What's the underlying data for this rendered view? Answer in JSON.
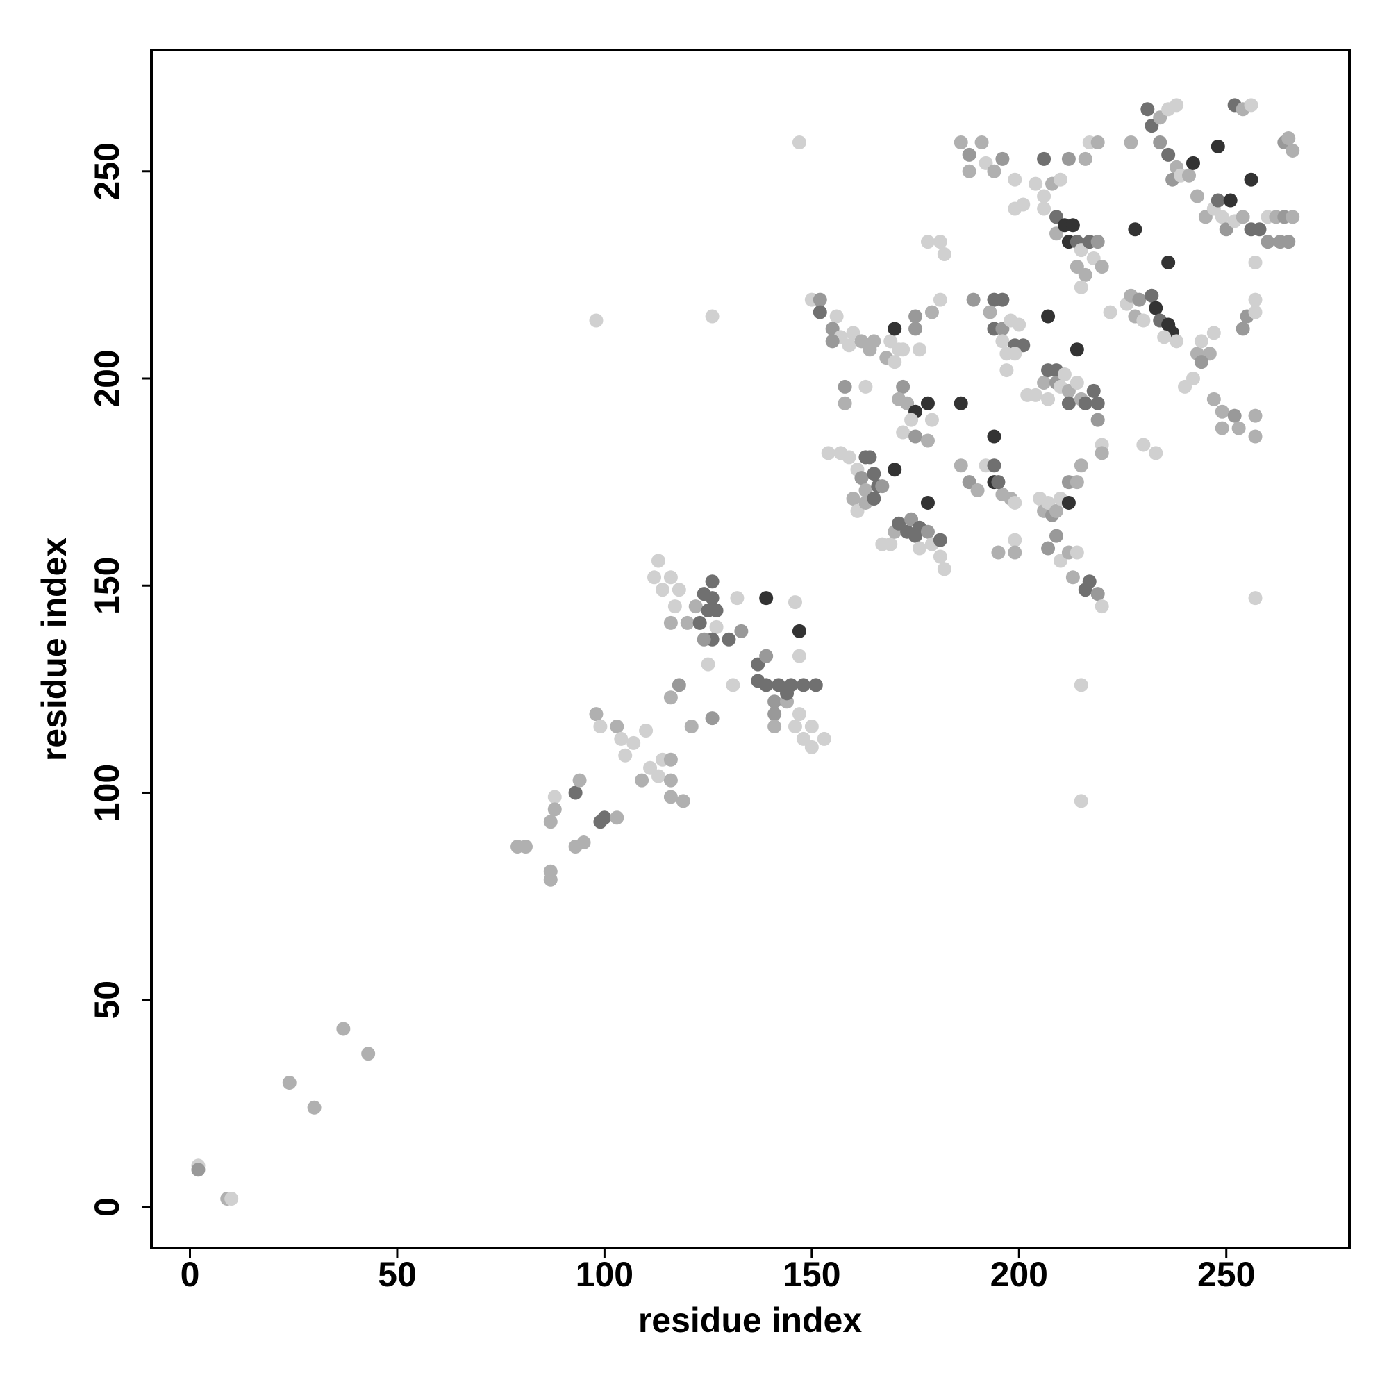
{
  "chart_data": {
    "type": "scatter",
    "xlabel": "residue index",
    "ylabel": "residue index",
    "xlim": [
      -9.3,
      279.7
    ],
    "ylim": [
      -9.9,
      279.3
    ],
    "xticks": [
      0,
      50,
      100,
      150,
      200,
      250
    ],
    "yticks": [
      0,
      50,
      100,
      150,
      200,
      250
    ],
    "series": [
      {
        "x": [
          2,
          2,
          9,
          10,
          24,
          30,
          37,
          43,
          98,
          126,
          147,
          215,
          215,
          257,
          79,
          81,
          87,
          87,
          88,
          88,
          87,
          93,
          93,
          94,
          95,
          99,
          100,
          98,
          99,
          103,
          103,
          104,
          105,
          107,
          110,
          109,
          111,
          113,
          114,
          116,
          116,
          116,
          119,
          112,
          114,
          113,
          116,
          118,
          117,
          116,
          120,
          122,
          124,
          125,
          126,
          126,
          127,
          127,
          126,
          123,
          124,
          130,
          133,
          132,
          131,
          126,
          121,
          118,
          116,
          125,
          137,
          137,
          139,
          139,
          139,
          142,
          141,
          141,
          141,
          144,
          146,
          147,
          148,
          150,
          150,
          153,
          148,
          145,
          147,
          147,
          151,
          146,
          144,
          150,
          152,
          152,
          156,
          155,
          157,
          155,
          160,
          159,
          162,
          164,
          165,
          158,
          158,
          163,
          154,
          157,
          159,
          161,
          163,
          164,
          162,
          163,
          165,
          166,
          167,
          160,
          161,
          163,
          165,
          167,
          169,
          170,
          171,
          173,
          174,
          175,
          176,
          178,
          179,
          181,
          181,
          182,
          176,
          169,
          170,
          171,
          168,
          172,
          170,
          175,
          175,
          176,
          179,
          172,
          171,
          173,
          175,
          172,
          174,
          175,
          178,
          179,
          178,
          170,
          178,
          186,
          194,
          178,
          181,
          182,
          181,
          186,
          188,
          188,
          191,
          192,
          194,
          196,
          199,
          199,
          201,
          189,
          194,
          196,
          193,
          194,
          196,
          196,
          198,
          200,
          199,
          201,
          197,
          197,
          199,
          207,
          186,
          188,
          190,
          192,
          194,
          194,
          196,
          195,
          198,
          199,
          199,
          199,
          195,
          202,
          204,
          206,
          207,
          207,
          209,
          209,
          210,
          211,
          212,
          212,
          214,
          215,
          216,
          218,
          219,
          219,
          220,
          220,
          214,
          205,
          206,
          208,
          207,
          209,
          210,
          212,
          212,
          214,
          215,
          207,
          209,
          210,
          212,
          213,
          214,
          216,
          217,
          219,
          220,
          206,
          204,
          206,
          208,
          210,
          212,
          216,
          217,
          219,
          206,
          209,
          209,
          211,
          213,
          212,
          214,
          215,
          217,
          219,
          214,
          216,
          218,
          220,
          215,
          222,
          226,
          227,
          229,
          228,
          230,
          232,
          233,
          234,
          236,
          237,
          235,
          238,
          228,
          236,
          227,
          231,
          232,
          234,
          236,
          238,
          234,
          236,
          238,
          237,
          239,
          241,
          242,
          243,
          245,
          247,
          248,
          251,
          249,
          250,
          252,
          254,
          256,
          258,
          260,
          262,
          264,
          266,
          260,
          263,
          265,
          248,
          256,
          252,
          254,
          256,
          264,
          265,
          266,
          233,
          230,
          243,
          244,
          246,
          247,
          240,
          242,
          247,
          249,
          249,
          252,
          253,
          254,
          255,
          257,
          257,
          257,
          257,
          257,
          244
        ],
        "values": [
          10,
          9,
          2,
          2,
          30,
          24,
          43,
          37,
          214,
          215,
          257,
          98,
          126,
          147,
          87,
          87,
          81,
          79,
          99,
          96,
          93,
          87,
          100,
          103,
          88,
          93,
          94,
          119,
          116,
          94,
          116,
          113,
          109,
          112,
          115,
          103,
          106,
          104,
          108,
          108,
          103,
          99,
          98,
          152,
          149,
          156,
          152,
          149,
          145,
          141,
          141,
          145,
          148,
          144,
          151,
          147,
          144,
          140,
          137,
          141,
          137,
          137,
          139,
          147,
          126,
          118,
          116,
          126,
          123,
          131,
          131,
          127,
          126,
          133,
          147,
          126,
          122,
          119,
          116,
          122,
          116,
          119,
          113,
          111,
          116,
          113,
          126,
          126,
          139,
          133,
          126,
          146,
          124,
          219,
          219,
          216,
          215,
          212,
          210,
          209,
          211,
          208,
          209,
          207,
          209,
          198,
          194,
          198,
          182,
          182,
          181,
          178,
          181,
          181,
          176,
          173,
          177,
          174,
          174,
          171,
          168,
          170,
          171,
          160,
          160,
          163,
          165,
          163,
          166,
          162,
          164,
          163,
          160,
          161,
          157,
          154,
          159,
          209,
          212,
          207,
          205,
          207,
          204,
          212,
          215,
          207,
          216,
          198,
          195,
          194,
          192,
          187,
          190,
          186,
          194,
          190,
          185,
          178,
          170,
          194,
          186,
          233,
          233,
          230,
          219,
          257,
          254,
          250,
          257,
          252,
          250,
          253,
          248,
          241,
          242,
          219,
          219,
          219,
          216,
          212,
          212,
          209,
          214,
          213,
          208,
          208,
          206,
          202,
          206,
          215,
          179,
          175,
          173,
          179,
          179,
          175,
          172,
          175,
          171,
          170,
          161,
          158,
          158,
          196,
          196,
          199,
          195,
          202,
          202,
          199,
          198,
          201,
          197,
          194,
          199,
          195,
          194,
          197,
          194,
          190,
          184,
          182,
          207,
          171,
          168,
          167,
          170,
          168,
          171,
          170,
          175,
          175,
          179,
          159,
          162,
          156,
          158,
          152,
          158,
          149,
          151,
          148,
          145,
          253,
          247,
          244,
          247,
          248,
          253,
          253,
          257,
          257,
          241,
          239,
          235,
          237,
          237,
          233,
          233,
          231,
          233,
          233,
          227,
          225,
          229,
          227,
          222,
          216,
          218,
          220,
          219,
          215,
          214,
          220,
          217,
          214,
          213,
          211,
          210,
          209,
          236,
          228,
          257,
          265,
          261,
          263,
          265,
          266,
          257,
          254,
          251,
          248,
          249,
          249,
          252,
          244,
          239,
          241,
          243,
          243,
          239,
          236,
          238,
          239,
          236,
          236,
          239,
          239,
          239,
          239,
          233,
          233,
          233,
          256,
          248,
          266,
          265,
          266,
          257,
          258,
          255,
          182,
          184,
          206,
          209,
          206,
          211,
          198,
          200,
          195,
          192,
          188,
          191,
          188,
          212,
          215,
          219,
          216,
          191,
          186,
          228,
          204
        ],
        "colors": [
          "#d0d0d0",
          "#999999",
          "#b0b0b0",
          "#d0d0d0",
          "#b0b0b0",
          "#b0b0b0",
          "#b0b0b0",
          "#b0b0b0",
          "#d0d0d0",
          "#d0d0d0",
          "#d0d0d0",
          "#d0d0d0",
          "#d0d0d0",
          "#d0d0d0",
          "#b0b0b0",
          "#b0b0b0",
          "#b0b0b0",
          "#b0b0b0",
          "#d0d0d0",
          "#b0b0b0",
          "#b0b0b0",
          "#b0b0b0",
          "#707070",
          "#b0b0b0",
          "#b0b0b0",
          "#707070",
          "#707070",
          "#b0b0b0",
          "#d0d0d0",
          "#b0b0b0",
          "#b0b0b0",
          "#d0d0d0",
          "#d0d0d0",
          "#d0d0d0",
          "#d0d0d0",
          "#b0b0b0",
          "#d0d0d0",
          "#d0d0d0",
          "#d0d0d0",
          "#b0b0b0",
          "#b0b0b0",
          "#b0b0b0",
          "#b0b0b0",
          "#d0d0d0",
          "#d0d0d0",
          "#d0d0d0",
          "#d0d0d0",
          "#d0d0d0",
          "#d0d0d0",
          "#b0b0b0",
          "#b0b0b0",
          "#b0b0b0",
          "#707070",
          "#707070",
          "#707070",
          "#707070",
          "#707070",
          "#d0d0d0",
          "#707070",
          "#707070",
          "#999999",
          "#707070",
          "#999999",
          "#d0d0d0",
          "#d0d0d0",
          "#999999",
          "#b0b0b0",
          "#999999",
          "#b0b0b0",
          "#d0d0d0",
          "#707070",
          "#707070",
          "#707070",
          "#999999",
          "#333333",
          "#707070",
          "#999999",
          "#999999",
          "#b0b0b0",
          "#b0b0b0",
          "#d0d0d0",
          "#d0d0d0",
          "#d0d0d0",
          "#d0d0d0",
          "#d0d0d0",
          "#d0d0d0",
          "#707070",
          "#707070",
          "#333333",
          "#d0d0d0",
          "#707070",
          "#d0d0d0",
          "#707070",
          "#d0d0d0",
          "#999999",
          "#707070",
          "#d0d0d0",
          "#999999",
          "#d0d0d0",
          "#999999",
          "#d0d0d0",
          "#d0d0d0",
          "#b0b0b0",
          "#b0b0b0",
          "#b0b0b0",
          "#999999",
          "#b0b0b0",
          "#d0d0d0",
          "#d0d0d0",
          "#d0d0d0",
          "#d0d0d0",
          "#d0d0d0",
          "#707070",
          "#707070",
          "#999999",
          "#b0b0b0",
          "#707070",
          "#707070",
          "#999999",
          "#b0b0b0",
          "#d0d0d0",
          "#b0b0b0",
          "#707070",
          "#d0d0d0",
          "#d0d0d0",
          "#b0b0b0",
          "#707070",
          "#707070",
          "#999999",
          "#707070",
          "#707070",
          "#999999",
          "#d0d0d0",
          "#707070",
          "#d0d0d0",
          "#d0d0d0",
          "#d0d0d0",
          "#d0d0d0",
          "#333333",
          "#d0d0d0",
          "#b0b0b0",
          "#d0d0d0",
          "#d0d0d0",
          "#999999",
          "#999999",
          "#d0d0d0",
          "#b0b0b0",
          "#999999",
          "#b0b0b0",
          "#b0b0b0",
          "#333333",
          "#d0d0d0",
          "#d0d0d0",
          "#999999",
          "#333333",
          "#d0d0d0",
          "#b0b0b0",
          "#333333",
          "#333333",
          "#333333",
          "#333333",
          "#d0d0d0",
          "#d0d0d0",
          "#d0d0d0",
          "#d0d0d0",
          "#b0b0b0",
          "#999999",
          "#b0b0b0",
          "#b0b0b0",
          "#d0d0d0",
          "#b0b0b0",
          "#999999",
          "#d0d0d0",
          "#d0d0d0",
          "#d0d0d0",
          "#999999",
          "#707070",
          "#707070",
          "#b0b0b0",
          "#707070",
          "#999999",
          "#d0d0d0",
          "#d0d0d0",
          "#d0d0d0",
          "#707070",
          "#707070",
          "#d0d0d0",
          "#d0d0d0",
          "#d0d0d0",
          "#333333",
          "#b0b0b0",
          "#999999",
          "#b0b0b0",
          "#d0d0d0",
          "#707070",
          "#333333",
          "#b0b0b0",
          "#707070",
          "#b0b0b0",
          "#d0d0d0",
          "#d0d0d0",
          "#b0b0b0",
          "#b0b0b0",
          "#d0d0d0",
          "#d0d0d0",
          "#b0b0b0",
          "#d0d0d0",
          "#707070",
          "#707070",
          "#999999",
          "#d0d0d0",
          "#d0d0d0",
          "#b0b0b0",
          "#707070",
          "#d0d0d0",
          "#b0b0b0",
          "#707070",
          "#707070",
          "#707070",
          "#999999",
          "#d0d0d0",
          "#b0b0b0",
          "#333333",
          "#d0d0d0",
          "#b0b0b0",
          "#999999",
          "#d0d0d0",
          "#b0b0b0",
          "#d0d0d0",
          "#333333",
          "#999999",
          "#b0b0b0",
          "#b0b0b0",
          "#999999",
          "#999999",
          "#d0d0d0",
          "#b0b0b0",
          "#b0b0b0",
          "#d0d0d0",
          "#707070",
          "#707070",
          "#999999",
          "#d0d0d0",
          "#707070",
          "#d0d0d0",
          "#d0d0d0",
          "#b0b0b0",
          "#d0d0d0",
          "#999999",
          "#b0b0b0",
          "#d0d0d0",
          "#b0b0b0",
          "#d0d0d0",
          "#707070",
          "#b0b0b0",
          "#333333",
          "#333333",
          "#333333",
          "#707070",
          "#d0d0d0",
          "#707070",
          "#999999",
          "#b0b0b0",
          "#b0b0b0",
          "#d0d0d0",
          "#b0b0b0",
          "#d0d0d0",
          "#d0d0d0",
          "#d0d0d0",
          "#b0b0b0",
          "#999999",
          "#b0b0b0",
          "#d0d0d0",
          "#707070",
          "#333333",
          "#707070",
          "#333333",
          "#333333",
          "#d0d0d0",
          "#d0d0d0",
          "#333333",
          "#333333",
          "#b0b0b0",
          "#707070",
          "#707070",
          "#b0b0b0",
          "#d0d0d0",
          "#d0d0d0",
          "#999999",
          "#707070",
          "#b0b0b0",
          "#999999",
          "#d0d0d0",
          "#b0b0b0",
          "#333333",
          "#b0b0b0",
          "#b0b0b0",
          "#d0d0d0",
          "#707070",
          "#333333",
          "#d0d0d0",
          "#999999",
          "#d0d0d0",
          "#b0b0b0",
          "#707070",
          "#707070",
          "#d0d0d0",
          "#b0b0b0",
          "#999999",
          "#b0b0b0",
          "#999999",
          "#999999",
          "#999999",
          "#333333",
          "#333333",
          "#707070",
          "#b0b0b0",
          "#d0d0d0",
          "#999999",
          "#b0b0b0",
          "#b0b0b0",
          "#d0d0d0",
          "#d0d0d0",
          "#b0b0b0",
          "#d0d0d0",
          "#b0b0b0",
          "#d0d0d0",
          "#d0d0d0",
          "#d0d0d0",
          "#b0b0b0",
          "#b0b0b0",
          "#b0b0b0",
          "#999999",
          "#b0b0b0",
          "#999999",
          "#999999",
          "#d0d0d0",
          "#d0d0d0",
          "#b0b0b0",
          "#b0b0b0",
          "#d0d0d0",
          "#999999"
        ]
      }
    ]
  }
}
